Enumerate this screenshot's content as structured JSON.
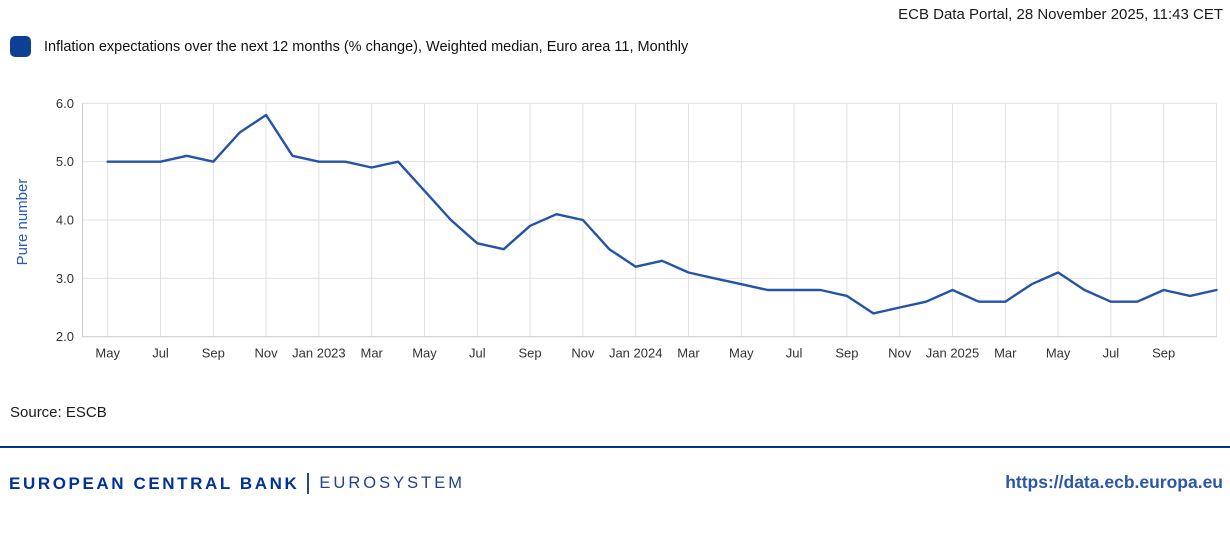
{
  "header": {
    "datetime": "ECB Data Portal, 28 November 2025, 11:43 CET"
  },
  "legend": {
    "label": "Inflation expectations over the next 12 months (% change), Weighted median, Euro area 11, Monthly"
  },
  "source": {
    "text": "Source: ESCB"
  },
  "footer": {
    "brand_primary": "EUROPEAN CENTRAL BANK",
    "brand_secondary": "EUROSYSTEM",
    "url": "https://data.ecb.europa.eu"
  },
  "colors": {
    "line": "#2553a8",
    "swatch": "#0d3f94",
    "navy": "#003299",
    "grid": "#e0e0e0",
    "axis": "#c9c9c9",
    "tick_text": "#333333",
    "ylabel_blue": "#2a5cb5",
    "url_blue": "#2a57a8"
  },
  "chart_data": {
    "type": "line",
    "title": "Inflation expectations over the next 12 months (% change), Weighted median, Euro area 11, Monthly",
    "ylabel": "Pure number",
    "xlabel": "",
    "ylim": [
      2.0,
      6.0
    ],
    "yticks": [
      6.0,
      5.0,
      4.0,
      3.0,
      2.0
    ],
    "ytick_labels": [
      "6.0",
      "5.0",
      "4.0",
      "3.0",
      "2.0"
    ],
    "grid": true,
    "legend_position": "top-left",
    "xtick_labels": [
      "May",
      "Jul",
      "Sep",
      "Nov",
      "Jan 2023",
      "Mar",
      "May",
      "Jul",
      "Sep",
      "Nov",
      "Jan 2024",
      "Mar",
      "May",
      "Jul",
      "Sep",
      "Nov",
      "Jan 2025",
      "Mar",
      "May",
      "Jul",
      "Sep"
    ],
    "x": [
      "2022-05",
      "2022-06",
      "2022-07",
      "2022-08",
      "2022-09",
      "2022-10",
      "2022-11",
      "2022-12",
      "2023-01",
      "2023-02",
      "2023-03",
      "2023-04",
      "2023-05",
      "2023-06",
      "2023-07",
      "2023-08",
      "2023-09",
      "2023-10",
      "2023-11",
      "2023-12",
      "2024-01",
      "2024-02",
      "2024-03",
      "2024-04",
      "2024-05",
      "2024-06",
      "2024-07",
      "2024-08",
      "2024-09",
      "2024-10",
      "2024-11",
      "2024-12",
      "2025-01",
      "2025-02",
      "2025-03",
      "2025-04",
      "2025-05",
      "2025-06",
      "2025-07",
      "2025-08",
      "2025-09",
      "2025-10",
      "2025-11"
    ],
    "series": [
      {
        "name": "Inflation expectations over the next 12 months (% change), Weighted median, Euro area 11, Monthly",
        "values": [
          5.0,
          5.0,
          5.0,
          5.1,
          5.0,
          5.5,
          5.8,
          5.1,
          5.0,
          5.0,
          4.9,
          5.0,
          4.5,
          4.0,
          3.6,
          3.5,
          3.9,
          4.1,
          4.0,
          3.5,
          3.2,
          3.3,
          3.1,
          3.0,
          2.9,
          2.8,
          2.8,
          2.8,
          2.7,
          2.4,
          2.5,
          2.6,
          2.8,
          2.6,
          2.6,
          2.9,
          3.1,
          2.8,
          2.6,
          2.6,
          2.8,
          2.7,
          2.8
        ]
      }
    ]
  }
}
